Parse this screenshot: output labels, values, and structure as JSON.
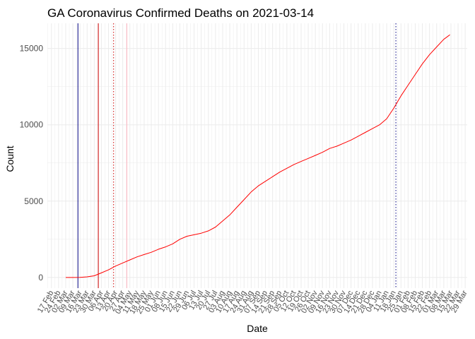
{
  "chart_data": {
    "type": "line",
    "title": "GA Coronavirus Confirmed Deaths on 2021-03-14",
    "xlabel": "Date",
    "ylabel": "Count",
    "ylim": [
      -700,
      16650
    ],
    "xlim": [
      "2020-02-13",
      "2021-03-31"
    ],
    "y_ticks": [
      0,
      5000,
      10000,
      15000
    ],
    "y_tick_labels": [
      "0",
      "5000",
      "10000",
      "15000"
    ],
    "x_tick_labels": [
      "17 Feb",
      "24 Feb",
      "02 Mar",
      "09 Mar",
      "16 Mar",
      "23 Mar",
      "30 Mar",
      "06 Apr",
      "13 Apr",
      "20 Apr",
      "27 Apr",
      "04 May",
      "11 May",
      "18 May",
      "25 May",
      "01 Jun",
      "08 Jun",
      "15 Jun",
      "22 Jun",
      "29 Jun",
      "06 Jul",
      "13 Jul",
      "20 Jul",
      "27 Jul",
      "03 Aug",
      "10 Aug",
      "17 Aug",
      "24 Aug",
      "31 Aug",
      "07 Sep",
      "14 Sep",
      "21 Sep",
      "28 Sep",
      "05 Oct",
      "12 Oct",
      "19 Oct",
      "26 Oct",
      "02 Nov",
      "09 Nov",
      "16 Nov",
      "23 Nov",
      "30 Nov",
      "07 Dec",
      "14 Dec",
      "21 Dec",
      "28 Dec",
      "04 Jan",
      "11 Jan",
      "18 Jan",
      "25 Jan",
      "01 Feb",
      "08 Feb",
      "15 Feb",
      "22 Feb",
      "01 Mar",
      "08 Mar",
      "15 Mar",
      "22 Mar",
      "29 Mar"
    ],
    "grid": true,
    "legend": "none",
    "series": [
      {
        "color": "#ff0000",
        "points": [
          [
            "2020-03-02",
            0
          ],
          [
            "2020-03-09",
            0
          ],
          [
            "2020-03-16",
            5
          ],
          [
            "2020-03-23",
            40
          ],
          [
            "2020-03-30",
            110
          ],
          [
            "2020-04-06",
            300
          ],
          [
            "2020-04-13",
            500
          ],
          [
            "2020-04-20",
            750
          ],
          [
            "2020-04-27",
            950
          ],
          [
            "2020-05-04",
            1150
          ],
          [
            "2020-05-11",
            1350
          ],
          [
            "2020-05-18",
            1500
          ],
          [
            "2020-05-25",
            1650
          ],
          [
            "2020-06-01",
            1850
          ],
          [
            "2020-06-08",
            2000
          ],
          [
            "2020-06-15",
            2200
          ],
          [
            "2020-06-22",
            2500
          ],
          [
            "2020-06-29",
            2700
          ],
          [
            "2020-07-06",
            2800
          ],
          [
            "2020-07-13",
            2900
          ],
          [
            "2020-07-20",
            3050
          ],
          [
            "2020-07-27",
            3300
          ],
          [
            "2020-08-03",
            3700
          ],
          [
            "2020-08-10",
            4100
          ],
          [
            "2020-08-17",
            4600
          ],
          [
            "2020-08-24",
            5100
          ],
          [
            "2020-08-31",
            5600
          ],
          [
            "2020-09-07",
            6000
          ],
          [
            "2020-09-14",
            6300
          ],
          [
            "2020-09-21",
            6600
          ],
          [
            "2020-09-28",
            6900
          ],
          [
            "2020-10-05",
            7150
          ],
          [
            "2020-10-12",
            7400
          ],
          [
            "2020-10-19",
            7600
          ],
          [
            "2020-10-26",
            7800
          ],
          [
            "2020-11-02",
            8000
          ],
          [
            "2020-11-09",
            8200
          ],
          [
            "2020-11-16",
            8450
          ],
          [
            "2020-11-23",
            8600
          ],
          [
            "2020-11-30",
            8800
          ],
          [
            "2020-12-07",
            9000
          ],
          [
            "2020-12-14",
            9250
          ],
          [
            "2020-12-21",
            9500
          ],
          [
            "2020-12-28",
            9750
          ],
          [
            "2021-01-04",
            10000
          ],
          [
            "2021-01-11",
            10400
          ],
          [
            "2021-01-18",
            11100
          ],
          [
            "2021-01-25",
            11900
          ],
          [
            "2021-02-01",
            12600
          ],
          [
            "2021-02-08",
            13300
          ],
          [
            "2021-02-15",
            14000
          ],
          [
            "2021-02-22",
            14600
          ],
          [
            "2021-03-01",
            15100
          ],
          [
            "2021-03-08",
            15600
          ],
          [
            "2021-03-14",
            15900
          ]
        ]
      }
    ],
    "vlines": [
      {
        "date": "2020-03-14",
        "color": "#000080",
        "style": "solid"
      },
      {
        "date": "2020-04-03",
        "color": "#cc0000",
        "style": "solid"
      },
      {
        "date": "2020-04-18",
        "color": "#cc0000",
        "style": "dotted"
      },
      {
        "date": "2020-05-01",
        "color": "#ffb6c1",
        "style": "solid"
      },
      {
        "date": "2021-01-20",
        "color": "#000080",
        "style": "dotted"
      }
    ]
  }
}
